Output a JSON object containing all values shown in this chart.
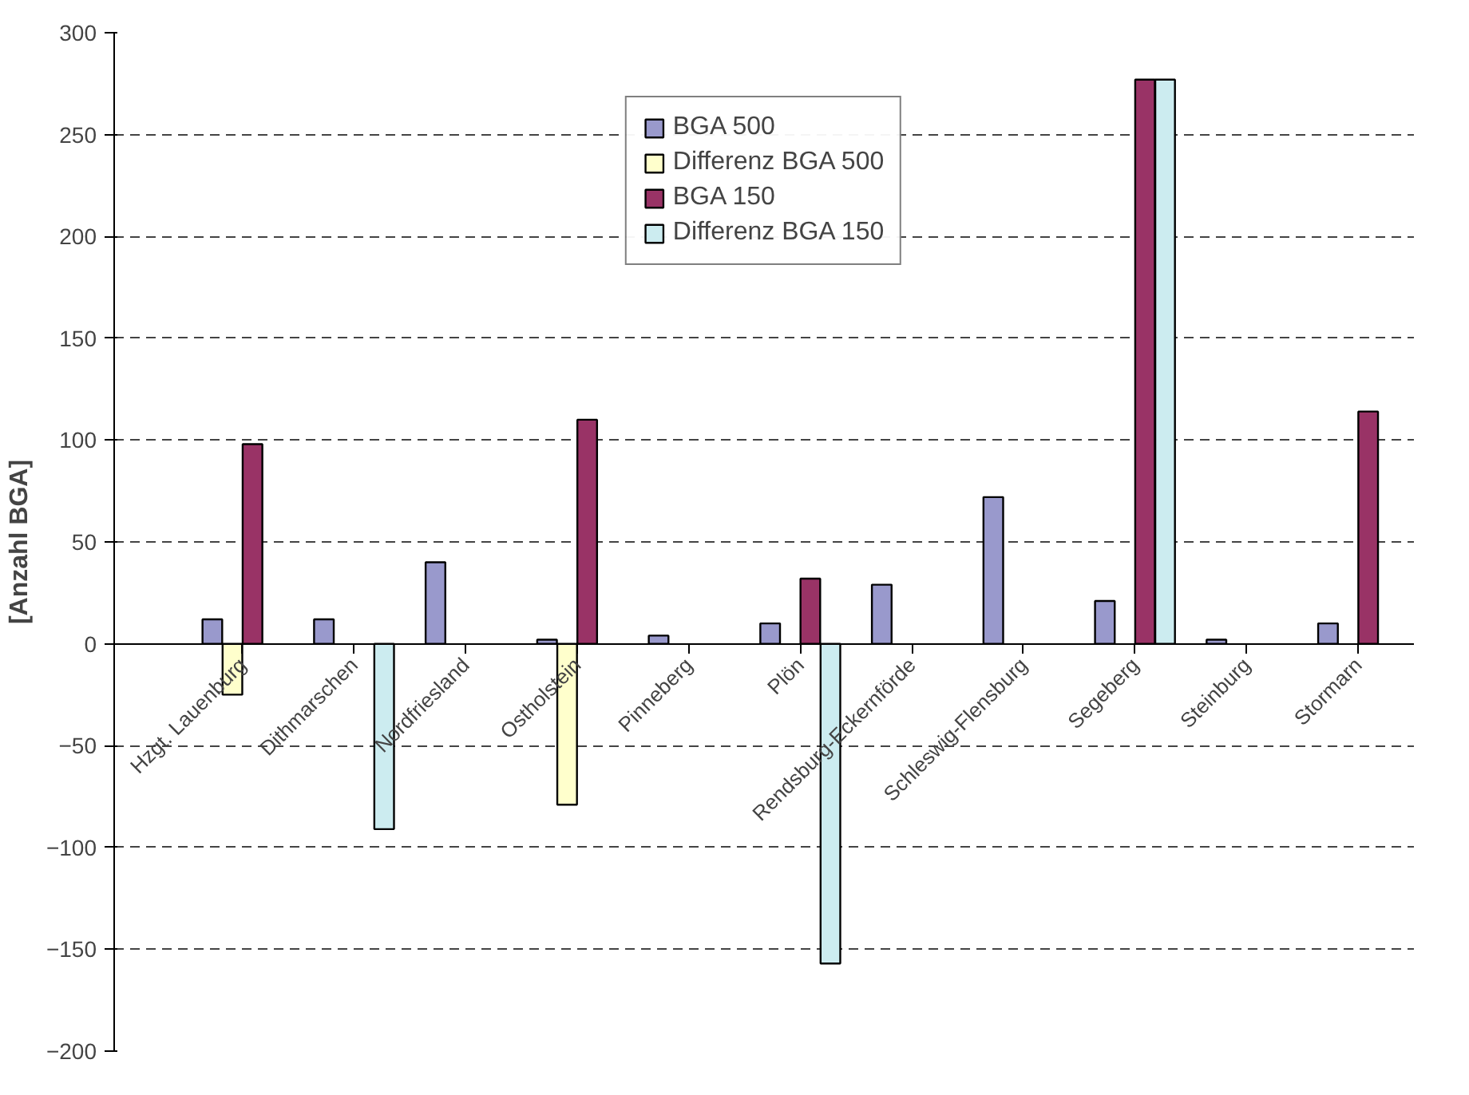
{
  "chart_data": {
    "type": "bar",
    "ylabel": "[Anzahl BGA]",
    "categories": [
      "Hzgt. Lauenburg",
      "Dithmarschen",
      "Nordfriesland",
      "Ostholstein",
      "Pinneberg",
      "Plön",
      "Rendsburg-Eckernförde",
      "Schleswig-Flensburg",
      "Segeberg",
      "Steinburg",
      "Stormarn"
    ],
    "series": [
      {
        "name": "BGA 500",
        "color": "#9999cc",
        "values": [
          12,
          12,
          40,
          2,
          4,
          10,
          29,
          72,
          21,
          2,
          10
        ]
      },
      {
        "name": "Differenz BGA 500",
        "color": "#ffffcc",
        "values": [
          -25,
          null,
          null,
          -79,
          null,
          null,
          null,
          null,
          null,
          null,
          null
        ]
      },
      {
        "name": "BGA 150",
        "color": "#993366",
        "values": [
          98,
          null,
          null,
          110,
          null,
          32,
          null,
          null,
          277,
          null,
          114
        ]
      },
      {
        "name": "Differenz BGA 150",
        "color": "#ccecf0",
        "values": [
          null,
          -91,
          null,
          null,
          null,
          -157,
          null,
          null,
          277,
          null,
          null
        ]
      }
    ],
    "ylim": [
      -200,
      300
    ],
    "yticks": [
      -200,
      -150,
      -100,
      -50,
      0,
      50,
      100,
      150,
      200,
      250,
      300
    ],
    "grid": "y",
    "legend": "top"
  }
}
